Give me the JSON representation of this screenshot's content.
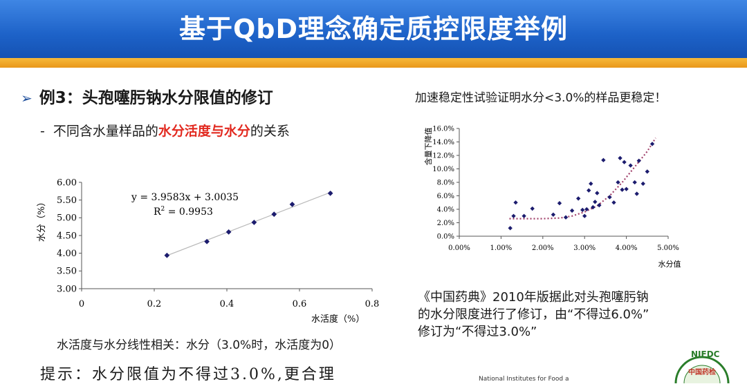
{
  "header": {
    "title": "基于QbD理念确定质控限度举例"
  },
  "left": {
    "example_title": "例3：头孢噻肟钠水分限值的修订",
    "subtitle_prefix": "不同含水量样品的",
    "subtitle_highlight": "水分活度与水分",
    "subtitle_suffix": "的关系",
    "caption": "水活度与水分线性相关：水分（3.0%时，水活度为0）",
    "hint": "提示：水分限值为不得过3.0%,更合理"
  },
  "right": {
    "title": "加速稳定性试验证明水分<3.0%的样品更稳定！",
    "conclusion_lines": [
      "《中国药典》2010年版据此对头孢噻肟钠",
      "的水分限度进行了修订，由“不得过6.0%”",
      "修订为“不得过3.0%”"
    ]
  },
  "footer": {
    "seal_text": "NIFDC",
    "seal_subtext": "中国药检",
    "bottom_text": "National Institutes for Food a"
  },
  "colors": {
    "header_blue": "#1d62c8",
    "stripe_orange": "#f0a52a",
    "highlight_red": "#e22a20",
    "marker_navy": "#1c1c6e",
    "trend_purple": "#a0406a"
  },
  "chart_data": [
    {
      "type": "scatter",
      "xlabel": "水活度（%）",
      "ylabel": "水分（%）",
      "xlim": [
        0,
        0.8
      ],
      "ylim": [
        3.0,
        6.0
      ],
      "x_ticks": [
        "0",
        "0.2",
        "0.4",
        "0.6",
        "0.8"
      ],
      "x_tick_values": [
        0,
        0.2,
        0.4,
        0.6,
        0.8
      ],
      "y_ticks": [
        "3.00",
        "3.50",
        "4.00",
        "4.50",
        "5.00",
        "5.50",
        "6.00"
      ],
      "y_tick_values": [
        3.0,
        3.5,
        4.0,
        4.5,
        5.0,
        5.5,
        6.0
      ],
      "equation": "y = 3.9583x + 3.0035",
      "r2_label": "R",
      "r2_sup": "2",
      "r2_value": " = 0.9953",
      "trendline": {
        "slope": 3.9583,
        "intercept": 3.0035,
        "x_range": [
          0.23,
          0.69
        ]
      },
      "x": [
        0.235,
        0.345,
        0.405,
        0.475,
        0.53,
        0.58,
        0.685
      ],
      "y": [
        3.94,
        4.33,
        4.6,
        4.87,
        5.1,
        5.38,
        5.69
      ],
      "grid": false
    },
    {
      "type": "scatter",
      "xlabel": "水分值",
      "ylabel": "含量下降值",
      "xlim": [
        0,
        5
      ],
      "ylim": [
        0,
        16
      ],
      "x_ticks": [
        "0.00%",
        "1.00%",
        "2.00%",
        "3.00%",
        "4.00%",
        "5.00%"
      ],
      "x_tick_values": [
        0,
        1,
        2,
        3,
        4,
        5
      ],
      "y_ticks": [
        "0.0%",
        "2.0%",
        "4.0%",
        "6.0%",
        "8.0%",
        "10.0%",
        "12.0%",
        "14.0%",
        "16.0%"
      ],
      "y_tick_values": [
        0,
        2,
        4,
        6,
        8,
        10,
        12,
        14,
        16
      ],
      "trend_curve": {
        "x": [
          1.2,
          1.6,
          2.0,
          2.4,
          2.7,
          3.0,
          3.3,
          3.6,
          3.9,
          4.2,
          4.5,
          4.7
        ],
        "y": [
          2.6,
          2.6,
          2.6,
          2.7,
          3.0,
          3.6,
          4.5,
          6.0,
          8.0,
          10.3,
          12.6,
          14.6
        ]
      },
      "x": [
        1.22,
        1.3,
        1.35,
        1.55,
        1.75,
        2.25,
        2.4,
        2.55,
        2.7,
        2.85,
        2.95,
        3.0,
        3.05,
        3.1,
        3.15,
        3.2,
        3.25,
        3.3,
        3.35,
        3.45,
        3.6,
        3.7,
        3.8,
        3.85,
        3.9,
        3.95,
        4.0,
        4.1,
        4.2,
        4.25,
        4.3,
        4.4,
        4.5,
        4.62
      ],
      "y": [
        1.2,
        3.0,
        5.0,
        3.0,
        4.1,
        3.2,
        4.9,
        2.8,
        3.8,
        5.6,
        3.9,
        3.0,
        4.0,
        6.8,
        7.8,
        4.3,
        5.1,
        6.4,
        4.6,
        11.3,
        5.8,
        5.0,
        8.0,
        11.6,
        6.9,
        11.0,
        7.0,
        10.5,
        8.0,
        6.3,
        11.2,
        7.8,
        9.6,
        13.7
      ],
      "grid": false
    }
  ]
}
